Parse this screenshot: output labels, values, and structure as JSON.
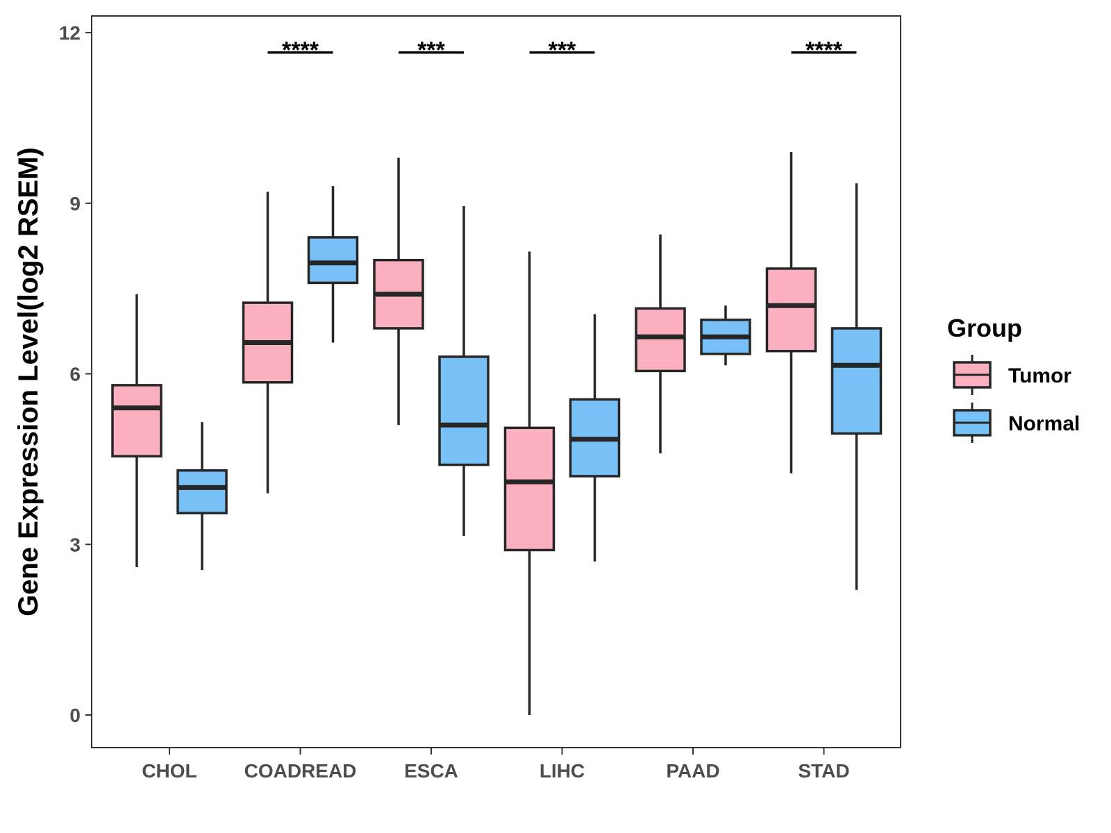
{
  "chart_data": {
    "type": "box",
    "ylabel": "Gene Expression Level(log2 RSEM)",
    "xlabel": "",
    "ylim": [
      -0.55,
      12.3
    ],
    "yticks": [
      0,
      3,
      6,
      9,
      12
    ],
    "categories": [
      "CHOL",
      "COADREAD",
      "ESCA",
      "LIHC",
      "PAAD",
      "STAD"
    ],
    "legend": {
      "title": "Group",
      "position": "right"
    },
    "grid": false,
    "series": [
      {
        "name": "Tumor",
        "color": "#FBB0C0",
        "boxes": [
          {
            "min": 2.6,
            "q1": 4.55,
            "median": 5.4,
            "q3": 5.8,
            "max": 7.4
          },
          {
            "min": 3.9,
            "q1": 5.85,
            "median": 6.55,
            "q3": 7.25,
            "max": 9.2
          },
          {
            "min": 5.1,
            "q1": 6.8,
            "median": 7.4,
            "q3": 8.0,
            "max": 9.8
          },
          {
            "min": 0.0,
            "q1": 2.9,
            "median": 4.1,
            "q3": 5.05,
            "max": 8.15
          },
          {
            "min": 4.6,
            "q1": 6.05,
            "median": 6.65,
            "q3": 7.15,
            "max": 8.45
          },
          {
            "min": 4.25,
            "q1": 6.4,
            "median": 7.2,
            "q3": 7.85,
            "max": 9.9
          }
        ]
      },
      {
        "name": "Normal",
        "color": "#78C1F7",
        "boxes": [
          {
            "min": 2.55,
            "q1": 3.55,
            "median": 4.0,
            "q3": 4.3,
            "max": 5.15
          },
          {
            "min": 6.55,
            "q1": 7.6,
            "median": 7.95,
            "q3": 8.4,
            "max": 9.3
          },
          {
            "min": 3.15,
            "q1": 4.4,
            "median": 5.1,
            "q3": 6.3,
            "max": 8.95
          },
          {
            "min": 2.7,
            "q1": 4.2,
            "median": 4.85,
            "q3": 5.55,
            "max": 7.05
          },
          {
            "min": 6.15,
            "q1": 6.35,
            "median": 6.65,
            "q3": 6.95,
            "max": 7.2
          },
          {
            "min": 2.2,
            "q1": 4.95,
            "median": 6.15,
            "q3": 6.8,
            "max": 9.35
          }
        ]
      }
    ],
    "significance": [
      {
        "category": "COADREAD",
        "label": "****"
      },
      {
        "category": "ESCA",
        "label": "***"
      },
      {
        "category": "LIHC",
        "label": "***"
      },
      {
        "category": "STAD",
        "label": "****"
      }
    ]
  }
}
